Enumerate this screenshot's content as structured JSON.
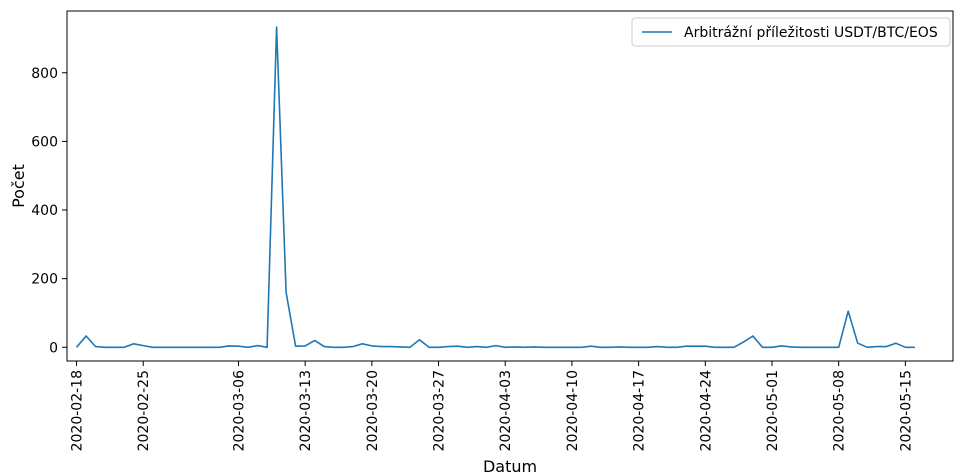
{
  "chart_data": {
    "type": "line",
    "xlabel": "Datum",
    "ylabel": "Počet",
    "ylim": [
      -40,
      980
    ],
    "yticks": [
      0,
      200,
      400,
      600,
      800
    ],
    "x_start": "2020-02-17",
    "x_end": "2020-05-20",
    "xticks": [
      "2020-02-18",
      "2020-02-25",
      "2020-03-06",
      "2020-03-13",
      "2020-03-20",
      "2020-03-27",
      "2020-04-03",
      "2020-04-10",
      "2020-04-17",
      "2020-04-24",
      "2020-05-01",
      "2020-05-08",
      "2020-05-15"
    ],
    "legend": {
      "position": "top-right"
    },
    "series": [
      {
        "name": "Arbitrážní příležitosti USDT/BTC/EOS",
        "color": "#1f77b4",
        "points": [
          [
            "2020-02-18",
            0
          ],
          [
            "2020-02-19",
            33
          ],
          [
            "2020-02-20",
            2
          ],
          [
            "2020-02-21",
            0
          ],
          [
            "2020-02-22",
            0
          ],
          [
            "2020-02-23",
            0
          ],
          [
            "2020-02-24",
            10
          ],
          [
            "2020-02-25",
            5
          ],
          [
            "2020-02-26",
            0
          ],
          [
            "2020-02-27",
            0
          ],
          [
            "2020-02-28",
            0
          ],
          [
            "2020-03-01",
            0
          ],
          [
            "2020-03-02",
            0
          ],
          [
            "2020-03-03",
            0
          ],
          [
            "2020-03-04",
            0
          ],
          [
            "2020-03-05",
            4
          ],
          [
            "2020-03-06",
            3
          ],
          [
            "2020-03-07",
            0
          ],
          [
            "2020-03-08",
            5
          ],
          [
            "2020-03-09",
            0
          ],
          [
            "2020-03-10",
            933
          ],
          [
            "2020-03-11",
            160
          ],
          [
            "2020-03-12",
            3
          ],
          [
            "2020-03-13",
            4
          ],
          [
            "2020-03-14",
            20
          ],
          [
            "2020-03-15",
            2
          ],
          [
            "2020-03-16",
            0
          ],
          [
            "2020-03-17",
            0
          ],
          [
            "2020-03-18",
            2
          ],
          [
            "2020-03-19",
            10
          ],
          [
            "2020-03-20",
            4
          ],
          [
            "2020-03-21",
            2
          ],
          [
            "2020-03-22",
            2
          ],
          [
            "2020-03-23",
            1
          ],
          [
            "2020-03-24",
            0
          ],
          [
            "2020-03-25",
            22
          ],
          [
            "2020-03-26",
            0
          ],
          [
            "2020-03-27",
            0
          ],
          [
            "2020-03-28",
            2
          ],
          [
            "2020-03-29",
            3
          ],
          [
            "2020-03-30",
            0
          ],
          [
            "2020-03-31",
            2
          ],
          [
            "2020-04-01",
            0
          ],
          [
            "2020-04-02",
            5
          ],
          [
            "2020-04-03",
            0
          ],
          [
            "2020-04-04",
            1
          ],
          [
            "2020-04-05",
            0
          ],
          [
            "2020-04-06",
            1
          ],
          [
            "2020-04-07",
            0
          ],
          [
            "2020-04-08",
            0
          ],
          [
            "2020-04-09",
            0
          ],
          [
            "2020-04-10",
            0
          ],
          [
            "2020-04-11",
            0
          ],
          [
            "2020-04-12",
            3
          ],
          [
            "2020-04-13",
            0
          ],
          [
            "2020-04-14",
            0
          ],
          [
            "2020-04-15",
            1
          ],
          [
            "2020-04-16",
            0
          ],
          [
            "2020-04-17",
            0
          ],
          [
            "2020-04-18",
            0
          ],
          [
            "2020-04-19",
            2
          ],
          [
            "2020-04-20",
            0
          ],
          [
            "2020-04-21",
            0
          ],
          [
            "2020-04-22",
            3
          ],
          [
            "2020-04-23",
            3
          ],
          [
            "2020-04-24",
            3
          ],
          [
            "2020-04-25",
            0
          ],
          [
            "2020-04-26",
            0
          ],
          [
            "2020-04-27",
            0
          ],
          [
            "2020-04-28",
            15
          ],
          [
            "2020-04-29",
            33
          ],
          [
            "2020-04-30",
            0
          ],
          [
            "2020-05-01",
            0
          ],
          [
            "2020-05-02",
            4
          ],
          [
            "2020-05-03",
            1
          ],
          [
            "2020-05-04",
            0
          ],
          [
            "2020-05-05",
            0
          ],
          [
            "2020-05-06",
            0
          ],
          [
            "2020-05-07",
            0
          ],
          [
            "2020-05-08",
            0
          ],
          [
            "2020-05-09",
            105
          ],
          [
            "2020-05-10",
            12
          ],
          [
            "2020-05-11",
            0
          ],
          [
            "2020-05-12",
            2
          ],
          [
            "2020-05-13",
            2
          ],
          [
            "2020-05-14",
            12
          ],
          [
            "2020-05-15",
            0
          ],
          [
            "2020-05-16",
            0
          ]
        ]
      }
    ]
  }
}
